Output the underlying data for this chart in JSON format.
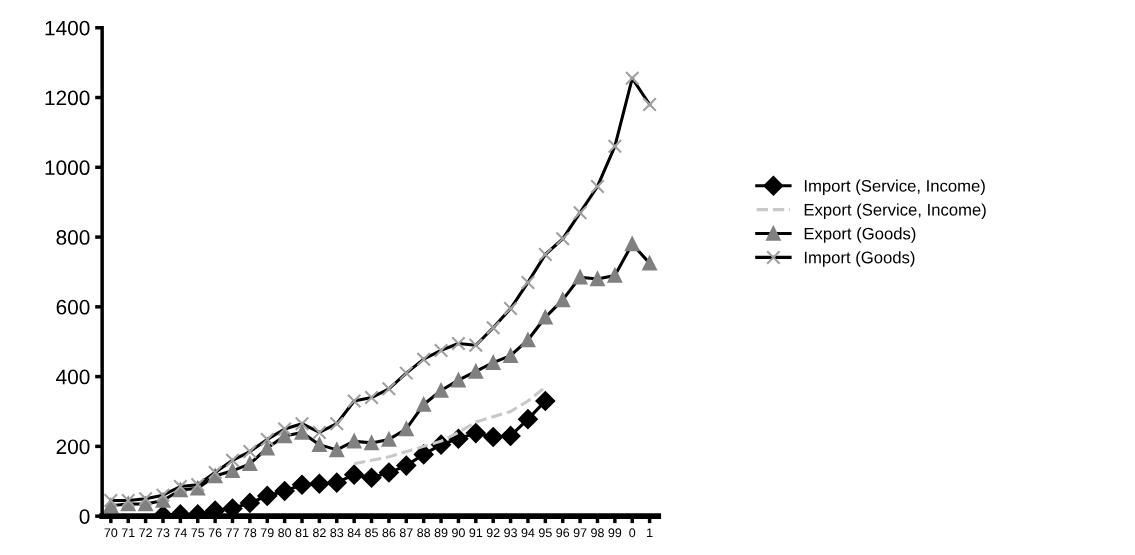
{
  "chart_data": {
    "type": "line",
    "categories": [
      "70",
      "71",
      "72",
      "73",
      "74",
      "75",
      "76",
      "77",
      "78",
      "79",
      "80",
      "81",
      "82",
      "83",
      "84",
      "85",
      "86",
      "87",
      "88",
      "89",
      "90",
      "91",
      "92",
      "93",
      "94",
      "95",
      "96",
      "97",
      "98",
      "99",
      "0",
      "1"
    ],
    "ylim": [
      0,
      1400
    ],
    "yticks": [
      0,
      200,
      400,
      600,
      800,
      1000,
      1200,
      1400
    ],
    "grid": false,
    "legend": "right",
    "series": [
      {
        "name": "Import (Service, Income)",
        "color": "#000000",
        "marker": "diamond",
        "line_style": "solid",
        "values": [
          null,
          null,
          null,
          2,
          5,
          5,
          16,
          22,
          38,
          58,
          72,
          90,
          93,
          96,
          119,
          110,
          125,
          145,
          177,
          205,
          222,
          238,
          227,
          230,
          278,
          330,
          null,
          null,
          null,
          null,
          null,
          null
        ]
      },
      {
        "name": "Export (Service, Income)",
        "color": "#c8c8c8",
        "marker": "none",
        "line_style": "dashed",
        "values": [
          null,
          null,
          null,
          null,
          null,
          null,
          null,
          null,
          null,
          null,
          null,
          null,
          null,
          null,
          150,
          160,
          170,
          185,
          200,
          215,
          240,
          270,
          285,
          300,
          330,
          370,
          null,
          null,
          null,
          null,
          null,
          null
        ]
      },
      {
        "name": "Export (Goods)",
        "color": "#808080",
        "marker": "triangle",
        "line_style": "solid",
        "values": [
          30,
          35,
          35,
          45,
          75,
          80,
          115,
          130,
          150,
          195,
          230,
          240,
          205,
          190,
          215,
          210,
          220,
          250,
          320,
          360,
          390,
          415,
          440,
          460,
          505,
          570,
          620,
          685,
          680,
          690,
          780,
          725
        ]
      },
      {
        "name": "Import (Goods)",
        "color": "#a0a0a0",
        "marker": "cross",
        "line_style": "solid",
        "values": [
          45,
          45,
          50,
          60,
          85,
          90,
          125,
          160,
          185,
          220,
          250,
          265,
          240,
          265,
          330,
          340,
          365,
          410,
          450,
          475,
          495,
          490,
          540,
          595,
          670,
          750,
          795,
          870,
          945,
          1060,
          1255,
          1180
        ]
      }
    ]
  }
}
